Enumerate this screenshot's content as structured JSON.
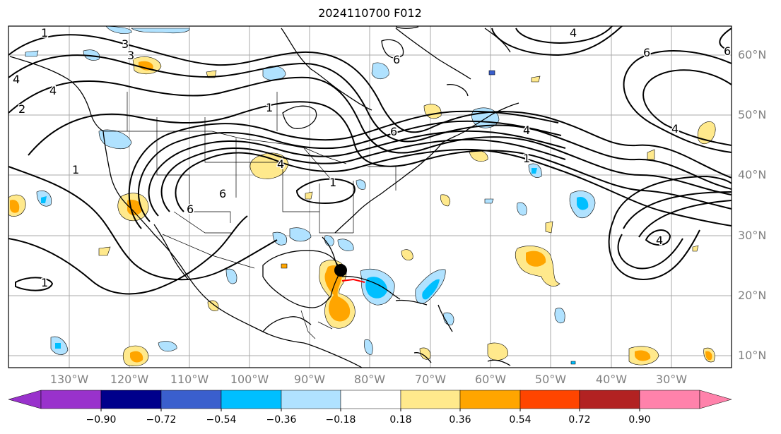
{
  "title": "2024110700 F012",
  "lat_labels": [
    "60°N",
    "50°N",
    "40°N",
    "30°N",
    "20°N",
    "10°N"
  ],
  "lon_labels": [
    "130°W",
    "120°W",
    "110°W",
    "100°W",
    "90°W",
    "80°W",
    "70°W",
    "60°W",
    "50°W",
    "40°W",
    "30°W"
  ],
  "contour_labels": [
    "1",
    "3",
    "3",
    "4",
    "2",
    "1",
    "1",
    "6",
    "1",
    "6",
    "1",
    "6",
    "4",
    "6",
    "6",
    "4",
    "4",
    "4",
    "4",
    "6",
    "1",
    "4"
  ],
  "colorbar": {
    "ticks": [
      "−0.90",
      "−0.72",
      "−0.54",
      "−0.36",
      "−0.18",
      "0.18",
      "0.36",
      "0.54",
      "0.72",
      "0.90"
    ],
    "colors": [
      "#9932cc",
      "#00008b",
      "#3a5fcd",
      "#00bfff",
      "#b0e2ff",
      "#ffffff",
      "#ffe98c",
      "#ffa500",
      "#ff4500",
      "#b22222",
      "#ff82ab"
    ]
  },
  "colors": {
    "grid": "#a9a9a9",
    "coast": "#000000",
    "contour": "#000000",
    "storm_marker": "#000000"
  }
}
